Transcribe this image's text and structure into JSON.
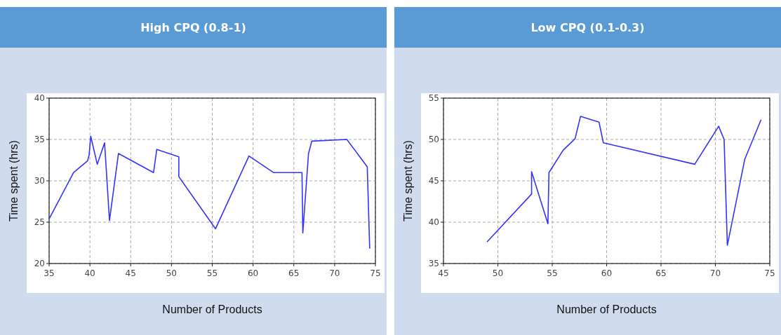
{
  "chart_data": [
    {
      "type": "line",
      "title": "High CPQ (0.8-1)",
      "xlabel": "Number of Products",
      "ylabel": "Time spent (hrs)",
      "xlim": [
        35,
        75
      ],
      "xticks": [
        35,
        40,
        45,
        50,
        55,
        60,
        65,
        70,
        75
      ],
      "ylim": [
        20,
        40
      ],
      "yticks": [
        20,
        25,
        30,
        35,
        40
      ],
      "grid": true,
      "series": [
        {
          "color": "#3333ff",
          "x": [
            35,
            38,
            39.7,
            39.9,
            40.1,
            40.9,
            41.8,
            42.4,
            43.5,
            47.8,
            48.2,
            50.9,
            50.9,
            55.4,
            59.5,
            62.5,
            66,
            66.1,
            66.8,
            67.2,
            71.5,
            74,
            74.3
          ],
          "values": [
            25.4,
            31,
            32.4,
            33.1,
            35.4,
            32,
            34.6,
            25.2,
            33.3,
            31,
            33.8,
            32.9,
            30.5,
            24.2,
            33,
            31,
            31,
            23.7,
            33.3,
            34.8,
            35,
            31.7,
            21.8
          ]
        }
      ]
    },
    {
      "type": "line",
      "title": "Low CPQ (0.1-0.3)",
      "xlabel": "Number of Products",
      "ylabel": "Time spent (hrs)",
      "xlim": [
        45,
        75
      ],
      "xticks": [
        45,
        50,
        55,
        60,
        65,
        70,
        75
      ],
      "ylim": [
        35,
        55
      ],
      "yticks": [
        35,
        40,
        45,
        50,
        55
      ],
      "grid": true,
      "series": [
        {
          "color": "#3333ff",
          "x": [
            49,
            53.1,
            53.1,
            54.6,
            54.7,
            56,
            57.1,
            57.6,
            59.3,
            59.7,
            68.1,
            70.3,
            70.8,
            71.1,
            72.7,
            74.2
          ],
          "values": [
            37.6,
            43.4,
            46.1,
            39.8,
            46,
            48.7,
            50.1,
            52.8,
            52.1,
            49.6,
            47,
            51.6,
            50,
            37.2,
            47.6,
            52.4
          ]
        }
      ]
    }
  ]
}
